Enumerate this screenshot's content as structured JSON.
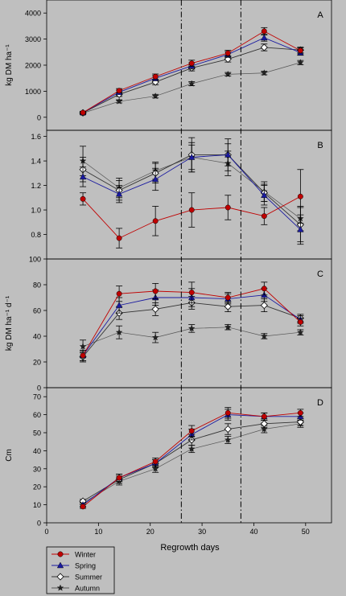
{
  "figure": {
    "x_axis_label": "Regrowth days",
    "x_ticks": [
      0,
      10,
      20,
      30,
      40,
      50
    ],
    "background": "#bfbfbf",
    "legend": {
      "placement": "bottom-left",
      "entries": [
        {
          "name": "Winter",
          "color": "#c00000",
          "marker": "circle"
        },
        {
          "name": "Spring",
          "color": "#1a1aa0",
          "marker": "triangle"
        },
        {
          "name": "Summer",
          "color": "#333333",
          "marker": "diamond-open"
        },
        {
          "name": "Autumn",
          "color": "#555555",
          "marker": "star"
        }
      ]
    },
    "reference_lines_x": [
      26,
      37.5
    ]
  },
  "chart_data": [
    {
      "type": "line",
      "panel_label": "A",
      "ylabel": "kg DM ha⁻¹",
      "ylim": [
        -500,
        4500
      ],
      "yticks": [
        0,
        1000,
        2000,
        3000,
        4000
      ],
      "xlim": [
        0,
        55
      ],
      "x": [
        7,
        14,
        21,
        28,
        35,
        42,
        49
      ],
      "series": [
        {
          "name": "Winter",
          "values": [
            180,
            1020,
            1560,
            2070,
            2460,
            3300,
            2560
          ],
          "err": [
            50,
            80,
            100,
            120,
            110,
            140,
            100
          ]
        },
        {
          "name": "Spring",
          "values": [
            180,
            960,
            1500,
            1970,
            2410,
            3050,
            2480
          ],
          "err": [
            50,
            80,
            100,
            120,
            110,
            130,
            100
          ]
        },
        {
          "name": "Summer",
          "values": [
            170,
            880,
            1350,
            1890,
            2230,
            2680,
            2580
          ],
          "err": [
            50,
            80,
            100,
            110,
            110,
            130,
            110
          ]
        },
        {
          "name": "Autumn",
          "values": [
            160,
            610,
            810,
            1290,
            1650,
            1700,
            2100
          ],
          "err": [
            40,
            60,
            70,
            80,
            70,
            70,
            80
          ]
        }
      ]
    },
    {
      "type": "line",
      "panel_label": "B",
      "ylabel": "",
      "ylim": [
        0.6,
        1.65
      ],
      "yticks": [
        0.8,
        1.0,
        1.2,
        1.4,
        1.6
      ],
      "xlim": [
        0,
        55
      ],
      "x": [
        7,
        14,
        21,
        28,
        35,
        42,
        49
      ],
      "series": [
        {
          "name": "Winter",
          "values": [
            1.09,
            0.77,
            0.91,
            1.0,
            1.02,
            0.95,
            1.11
          ],
          "err": [
            0.05,
            0.08,
            0.12,
            0.14,
            0.1,
            0.07,
            0.22
          ]
        },
        {
          "name": "Spring",
          "values": [
            1.27,
            1.13,
            1.25,
            1.43,
            1.45,
            1.12,
            0.84
          ],
          "err": [
            0.08,
            0.07,
            0.09,
            0.1,
            0.09,
            0.08,
            0.12
          ]
        },
        {
          "name": "Summer",
          "values": [
            1.33,
            1.16,
            1.3,
            1.45,
            1.45,
            1.14,
            0.88
          ],
          "err": [
            0.1,
            0.08,
            0.08,
            0.14,
            0.13,
            0.07,
            0.14
          ]
        },
        {
          "name": "Autumn",
          "values": [
            1.4,
            1.18,
            1.32,
            1.43,
            1.38,
            1.15,
            0.93
          ],
          "err": [
            0.12,
            0.08,
            0.07,
            0.12,
            0.1,
            0.08,
            0.1
          ]
        }
      ]
    },
    {
      "type": "line",
      "panel_label": "C",
      "ylabel": "kg DM ha⁻¹ d⁻¹",
      "ylim": [
        0,
        100
      ],
      "yticks": [
        0,
        20,
        40,
        60,
        80,
        100
      ],
      "xlim": [
        0,
        55
      ],
      "x": [
        7,
        14,
        21,
        28,
        35,
        42,
        49
      ],
      "series": [
        {
          "name": "Winter",
          "values": [
            25,
            73,
            75,
            74,
            70,
            77,
            51
          ],
          "err": [
            4,
            6,
            6,
            8,
            4,
            5,
            3
          ]
        },
        {
          "name": "Spring",
          "values": [
            25,
            64,
            70,
            70,
            69,
            72,
            53
          ],
          "err": [
            4,
            6,
            6,
            7,
            4,
            5,
            3
          ]
        },
        {
          "name": "Summer",
          "values": [
            24,
            58,
            61,
            66,
            63,
            64,
            54
          ],
          "err": [
            4,
            5,
            5,
            5,
            4,
            5,
            3
          ]
        },
        {
          "name": "Autumn",
          "values": [
            32,
            43,
            39,
            46,
            47,
            40,
            43
          ],
          "err": [
            5,
            5,
            4,
            3,
            2,
            2,
            2
          ]
        }
      ]
    },
    {
      "type": "line",
      "panel_label": "D",
      "ylabel": "Cm",
      "ylim": [
        0,
        75
      ],
      "yticks": [
        0,
        10,
        20,
        30,
        40,
        50,
        60,
        70
      ],
      "xlim": [
        0,
        55
      ],
      "x": [
        7,
        14,
        21,
        28,
        35,
        42,
        49
      ],
      "series": [
        {
          "name": "Winter",
          "values": [
            9,
            25,
            34,
            51,
            61,
            59,
            61
          ],
          "err": [
            1,
            2,
            2,
            3,
            3,
            2,
            2
          ]
        },
        {
          "name": "Spring",
          "values": [
            10,
            25,
            33,
            49,
            60,
            59,
            59
          ],
          "err": [
            1,
            2,
            2,
            3,
            3,
            2,
            2
          ]
        },
        {
          "name": "Summer",
          "values": [
            12,
            24,
            33,
            46,
            52,
            55,
            56
          ],
          "err": [
            1,
            2,
            2,
            3,
            3,
            2,
            2
          ]
        },
        {
          "name": "Autumn",
          "values": [
            11,
            23,
            30,
            41,
            46,
            52,
            55
          ],
          "err": [
            1,
            2,
            2,
            2,
            2,
            2,
            2
          ]
        }
      ]
    }
  ]
}
